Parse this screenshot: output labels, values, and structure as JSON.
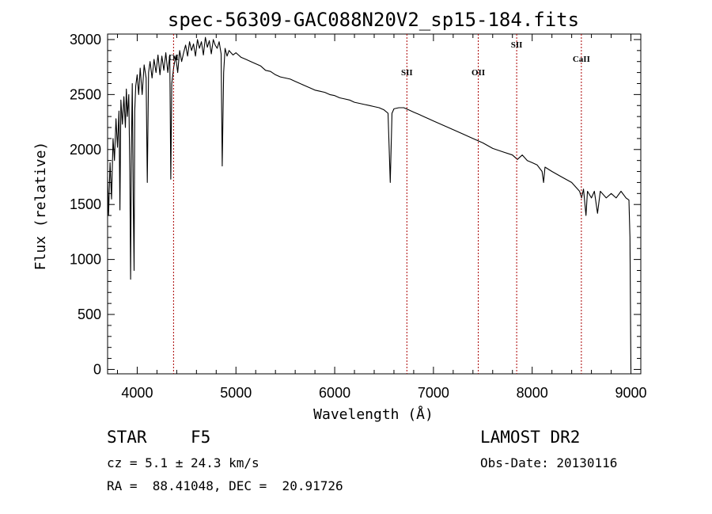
{
  "chart_data": {
    "type": "line",
    "title": "spec-56309-GAC088N20V2_sp15-184.fits",
    "xlabel": "Wavelength (Å)",
    "ylabel": "Flux (relative)",
    "xlim": [
      3700,
      9100
    ],
    "ylim": [
      -40,
      3050
    ],
    "x_ticks": [
      4000,
      5000,
      6000,
      7000,
      8000,
      9000
    ],
    "y_ticks": [
      0,
      500,
      1000,
      1500,
      2000,
      2500,
      3000
    ],
    "grid": false,
    "line_color": "#000000",
    "marker_color": "#aa0000",
    "spectral_lines": [
      {
        "name": "OI",
        "wavelength": 4368
      },
      {
        "name": "SII",
        "wavelength": 6731
      },
      {
        "name": "OII",
        "wavelength": 7454
      },
      {
        "name": "SII",
        "wavelength": 7843
      },
      {
        "name": "CaII",
        "wavelength": 8498
      }
    ],
    "series": [
      {
        "x": [
          3700,
          3710,
          3725,
          3740,
          3755,
          3770,
          3785,
          3800,
          3815,
          3825,
          3835,
          3850,
          3865,
          3880,
          3890,
          3900,
          3915,
          3925,
          3933,
          3940,
          3950,
          3960,
          3968,
          3975,
          3985,
          4000,
          4015,
          4030,
          4050,
          4070,
          4090,
          4102,
          4115,
          4130,
          4150,
          4170,
          4190,
          4210,
          4230,
          4250,
          4270,
          4290,
          4310,
          4330,
          4340,
          4350,
          4370,
          4390,
          4410,
          4430,
          4450,
          4470,
          4490,
          4510,
          4530,
          4550,
          4570,
          4590,
          4610,
          4630,
          4650,
          4670,
          4690,
          4710,
          4730,
          4750,
          4770,
          4790,
          4810,
          4830,
          4850,
          4861,
          4875,
          4890,
          4910,
          4930,
          4950,
          4970,
          5000,
          5050,
          5100,
          5150,
          5200,
          5250,
          5300,
          5350,
          5400,
          5450,
          5500,
          5550,
          5600,
          5650,
          5700,
          5750,
          5800,
          5850,
          5900,
          5950,
          6000,
          6050,
          6100,
          6150,
          6200,
          6250,
          6300,
          6350,
          6400,
          6450,
          6500,
          6540,
          6563,
          6580,
          6600,
          6650,
          6700,
          6750,
          6800,
          6850,
          6900,
          6950,
          7000,
          7100,
          7200,
          7300,
          7400,
          7500,
          7600,
          7700,
          7800,
          7850,
          7900,
          7950,
          8000,
          8050,
          8100,
          8115,
          8130,
          8200,
          8300,
          8400,
          8450,
          8480,
          8500,
          8520,
          8545,
          8560,
          8600,
          8630,
          8662,
          8690,
          8750,
          8800,
          8850,
          8900,
          8950,
          8980,
          8990,
          9000
        ],
        "y": [
          1750,
          1400,
          1880,
          1550,
          2100,
          1900,
          2280,
          2020,
          2350,
          1450,
          2450,
          2230,
          2480,
          2200,
          2550,
          2300,
          2500,
          1800,
          820,
          1950,
          2600,
          1500,
          900,
          2350,
          2580,
          2680,
          2500,
          2740,
          2500,
          2770,
          2650,
          1700,
          2700,
          2800,
          2650,
          2820,
          2700,
          2860,
          2680,
          2850,
          2720,
          2880,
          2700,
          2860,
          1730,
          2600,
          2750,
          2850,
          2700,
          2900,
          2800,
          2880,
          2950,
          2850,
          2980,
          2900,
          2960,
          2850,
          3000,
          2920,
          2980,
          2860,
          3020,
          2930,
          2990,
          2870,
          3000,
          2950,
          2920,
          2980,
          2870,
          1850,
          2700,
          2920,
          2850,
          2900,
          2880,
          2860,
          2880,
          2840,
          2820,
          2800,
          2780,
          2760,
          2720,
          2710,
          2680,
          2660,
          2650,
          2640,
          2620,
          2600,
          2580,
          2560,
          2540,
          2530,
          2520,
          2500,
          2490,
          2470,
          2460,
          2450,
          2430,
          2420,
          2410,
          2400,
          2390,
          2380,
          2360,
          2330,
          1700,
          2330,
          2370,
          2380,
          2380,
          2360,
          2340,
          2320,
          2300,
          2280,
          2260,
          2220,
          2180,
          2140,
          2100,
          2060,
          2010,
          1980,
          1950,
          1910,
          1950,
          1900,
          1880,
          1860,
          1800,
          1700,
          1840,
          1800,
          1750,
          1700,
          1650,
          1620,
          1560,
          1640,
          1400,
          1620,
          1560,
          1620,
          1420,
          1620,
          1560,
          1600,
          1560,
          1620,
          1560,
          1540,
          1200,
          0
        ]
      }
    ]
  },
  "info": {
    "object_type": "STAR",
    "subclass": "F5",
    "survey": "LAMOST DR2",
    "cz_line": "cz = 5.1 ± 24.3 km/s",
    "obs_date_line": "Obs-Date: 20130116",
    "coords_line": "RA =  88.41048, DEC =  20.91726"
  }
}
